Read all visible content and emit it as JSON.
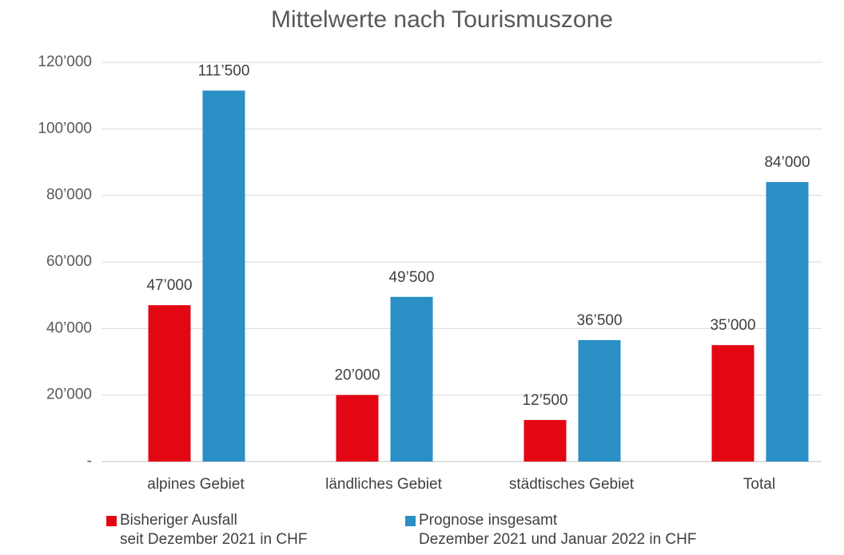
{
  "chart_data": {
    "type": "bar",
    "title": "Mittelwerte nach Tourismuszone",
    "categories": [
      "alpines Gebiet",
      "ländliches Gebiet",
      "städtisches Gebiet",
      "Total"
    ],
    "series": [
      {
        "name": "Bisheriger Ausfall\nseit Dezember 2021 in CHF",
        "color": "#e30613",
        "values": [
          47000,
          20000,
          12500,
          35000
        ],
        "value_labels": [
          "47’000",
          "20’000",
          "12’500",
          "35’000"
        ]
      },
      {
        "name": "Prognose insgesamt\nDezember 2021 und Januar 2022 in CHF",
        "color": "#2a8fc4",
        "values": [
          111500,
          49500,
          36500,
          84000
        ],
        "value_labels": [
          "111’500",
          "49’500",
          "36’500",
          "84’000"
        ]
      }
    ],
    "ylim": [
      0,
      120000
    ],
    "yticks": [
      {
        "value": 0,
        "label": "-"
      },
      {
        "value": 20000,
        "label": "20’000"
      },
      {
        "value": 40000,
        "label": "40’000"
      },
      {
        "value": 60000,
        "label": "60’000"
      },
      {
        "value": 80000,
        "label": "80’000"
      },
      {
        "value": 100000,
        "label": "100’000"
      },
      {
        "value": 120000,
        "label": "120’000"
      }
    ],
    "grid": true,
    "legend": "bottom"
  }
}
